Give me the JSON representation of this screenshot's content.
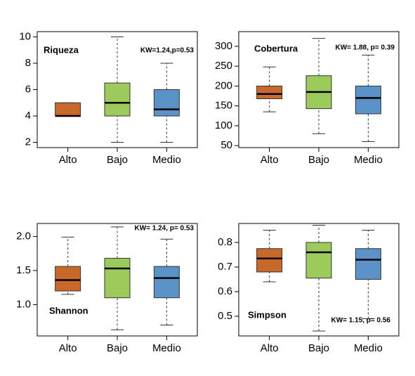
{
  "chart_data": [
    {
      "type": "box",
      "title": "Riqueza",
      "annotation": "KW=1.24,p=0.53",
      "categories": [
        "Alto",
        "Bajo",
        "Medio"
      ],
      "colors": [
        "#c8692c",
        "#9ccb5c",
        "#5b93c8"
      ],
      "boxes": [
        {
          "min": 4,
          "q1": 4,
          "median": 4,
          "q3": 5,
          "max": 5
        },
        {
          "min": 2,
          "q1": 4,
          "median": 5,
          "q3": 6.5,
          "max": 10
        },
        {
          "min": 2,
          "q1": 4,
          "median": 4.5,
          "q3": 6,
          "max": 8
        }
      ],
      "ylim": [
        1.6,
        10.4
      ],
      "yticks": [
        2,
        4,
        6,
        8,
        10
      ]
    },
    {
      "type": "box",
      "title": "Cobertura",
      "annotation": "KW= 1.88, p= 0.39",
      "categories": [
        "Alto",
        "Bajo",
        "Medio"
      ],
      "colors": [
        "#c8692c",
        "#9ccb5c",
        "#5b93c8"
      ],
      "boxes": [
        {
          "min": 135,
          "q1": 168,
          "median": 180,
          "q3": 200,
          "max": 248
        },
        {
          "min": 80,
          "q1": 143,
          "median": 185,
          "q3": 226,
          "max": 320
        },
        {
          "min": 60,
          "q1": 130,
          "median": 170,
          "q3": 200,
          "max": 278
        }
      ],
      "ylim": [
        45,
        337
      ],
      "yticks": [
        50,
        100,
        150,
        200,
        250,
        300
      ]
    },
    {
      "type": "box",
      "title": "Shannon",
      "annotation": "KW= 1.24, p= 0.53",
      "categories": [
        "Alto",
        "Bajo",
        "Medio"
      ],
      "colors": [
        "#c8692c",
        "#9ccb5c",
        "#5b93c8"
      ],
      "boxes": [
        {
          "min": 1.15,
          "q1": 1.2,
          "median": 1.36,
          "q3": 1.56,
          "max": 1.99
        },
        {
          "min": 0.63,
          "q1": 1.1,
          "median": 1.53,
          "q3": 1.68,
          "max": 2.14
        },
        {
          "min": 0.7,
          "q1": 1.1,
          "median": 1.39,
          "q3": 1.56,
          "max": 1.96
        }
      ],
      "ylim": [
        0.54,
        2.19
      ],
      "yticks": [
        {
          "value": 1,
          "label": "1.0"
        },
        1.5,
        {
          "value": 2,
          "label": "2.0"
        }
      ]
    },
    {
      "type": "box",
      "title": "Simpson",
      "annotation": "KW= 1.15, p= 0.56",
      "categories": [
        "Alto",
        "Bajo",
        "Medio"
      ],
      "colors": [
        "#c8692c",
        "#9ccb5c",
        "#5b93c8"
      ],
      "boxes": [
        {
          "min": 0.64,
          "q1": 0.68,
          "median": 0.735,
          "q3": 0.775,
          "max": 0.85
        },
        {
          "min": 0.44,
          "q1": 0.655,
          "median": 0.76,
          "q3": 0.8,
          "max": 0.87
        },
        {
          "min": 0.49,
          "q1": 0.65,
          "median": 0.73,
          "q3": 0.775,
          "max": 0.85
        }
      ],
      "ylim": [
        0.42,
        0.877
      ],
      "yticks": [
        0.5,
        0.6,
        0.7,
        0.8
      ]
    }
  ]
}
